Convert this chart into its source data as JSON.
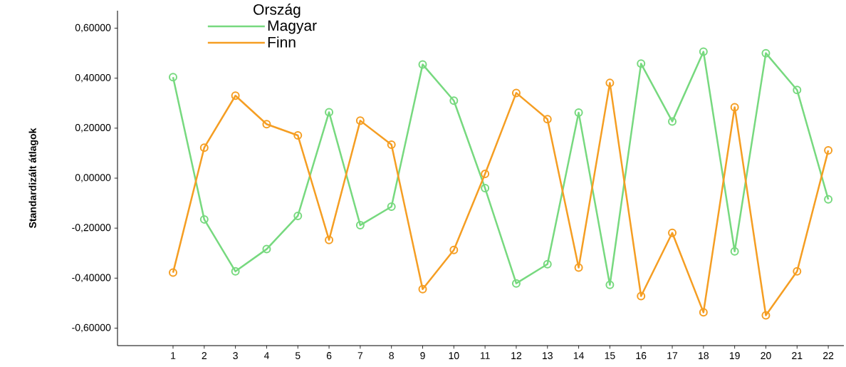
{
  "chart_data": {
    "type": "line",
    "ylabel": "Standardizált átlagok",
    "legend_title": "Ország",
    "categories": [
      "1",
      "2",
      "3",
      "4",
      "5",
      "6",
      "7",
      "8",
      "9",
      "10",
      "11",
      "12",
      "13",
      "14",
      "15",
      "16",
      "17",
      "18",
      "19",
      "20",
      "21",
      "22"
    ],
    "series": [
      {
        "name": "Magyar",
        "color": "#77d97f",
        "values": [
          0.404,
          -0.165,
          -0.373,
          -0.284,
          -0.151,
          0.264,
          -0.188,
          -0.114,
          0.455,
          0.31,
          -0.04,
          -0.421,
          -0.344,
          0.262,
          -0.427,
          0.458,
          0.227,
          0.506,
          -0.293,
          0.5,
          0.353,
          -0.085
        ]
      },
      {
        "name": "Finn",
        "color": "#f59e23",
        "values": [
          -0.378,
          0.122,
          0.33,
          0.216,
          0.171,
          -0.247,
          0.23,
          0.134,
          -0.444,
          -0.287,
          0.017,
          0.341,
          0.236,
          -0.358,
          0.381,
          -0.472,
          -0.219,
          -0.537,
          0.284,
          -0.549,
          -0.373,
          0.111
        ]
      }
    ],
    "ylim": [
      -0.67,
      0.67
    ],
    "yticks": [
      {
        "value": -0.6,
        "label": "-0,60000"
      },
      {
        "value": -0.4,
        "label": "-0,40000"
      },
      {
        "value": -0.2,
        "label": "-0,20000"
      },
      {
        "value": 0,
        "label": "0,00000"
      },
      {
        "value": 0.2,
        "label": "0,20000"
      },
      {
        "value": 0.4,
        "label": "0,40000"
      },
      {
        "value": 0.6,
        "label": "0,60000"
      }
    ],
    "marker": "circle",
    "line_style": "solid",
    "grid": false,
    "legend": "top left"
  }
}
